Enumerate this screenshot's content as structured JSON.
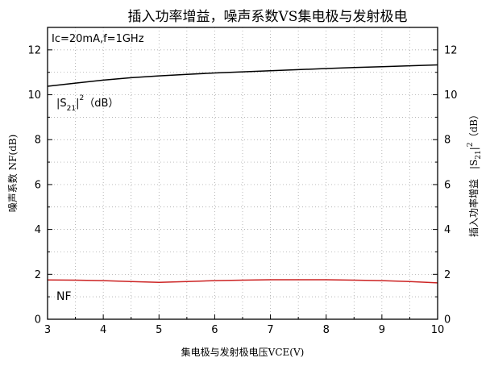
{
  "chart_data": {
    "type": "line",
    "title": "插入功率增益，噪声系数VS集电极与发射极电",
    "xlabel": "集电极与发射极电压VCE(V)",
    "ylabel_left": "噪声系数 NF(dB)",
    "ylabel_right": "插入功率增益 |S21|² (dB)",
    "condition": "Ic=20mA,f=1GHz",
    "xlim": [
      3,
      10
    ],
    "ylim": [
      0,
      13
    ],
    "x_ticks": [
      3,
      4,
      5,
      6,
      7,
      8,
      9,
      10
    ],
    "y_ticks": [
      0,
      2,
      4,
      6,
      8,
      10,
      12
    ],
    "grid": true,
    "series": [
      {
        "name": "|S21|² (dB)",
        "color": "#000000",
        "x": [
          3,
          3.5,
          4,
          4.5,
          5,
          5.5,
          6,
          6.5,
          7,
          7.5,
          8,
          8.5,
          9,
          9.5,
          10
        ],
        "y": [
          10.38,
          10.52,
          10.65,
          10.76,
          10.84,
          10.91,
          10.97,
          11.02,
          11.07,
          11.12,
          11.17,
          11.21,
          11.25,
          11.29,
          11.33
        ]
      },
      {
        "name": "NF",
        "color": "#cc2222",
        "x": [
          3,
          3.5,
          4,
          4.5,
          5,
          5.5,
          6,
          6.5,
          7,
          7.5,
          8,
          8.5,
          9,
          9.5,
          10
        ],
        "y": [
          1.75,
          1.74,
          1.72,
          1.68,
          1.64,
          1.68,
          1.72,
          1.74,
          1.76,
          1.76,
          1.76,
          1.74,
          1.72,
          1.68,
          1.62
        ]
      }
    ],
    "annotations": {
      "s21_label_main": "|S",
      "s21_label_sub": "21",
      "s21_label_sup": "2",
      "s21_label_unit": "（dB）",
      "nf_label": "NF"
    }
  }
}
